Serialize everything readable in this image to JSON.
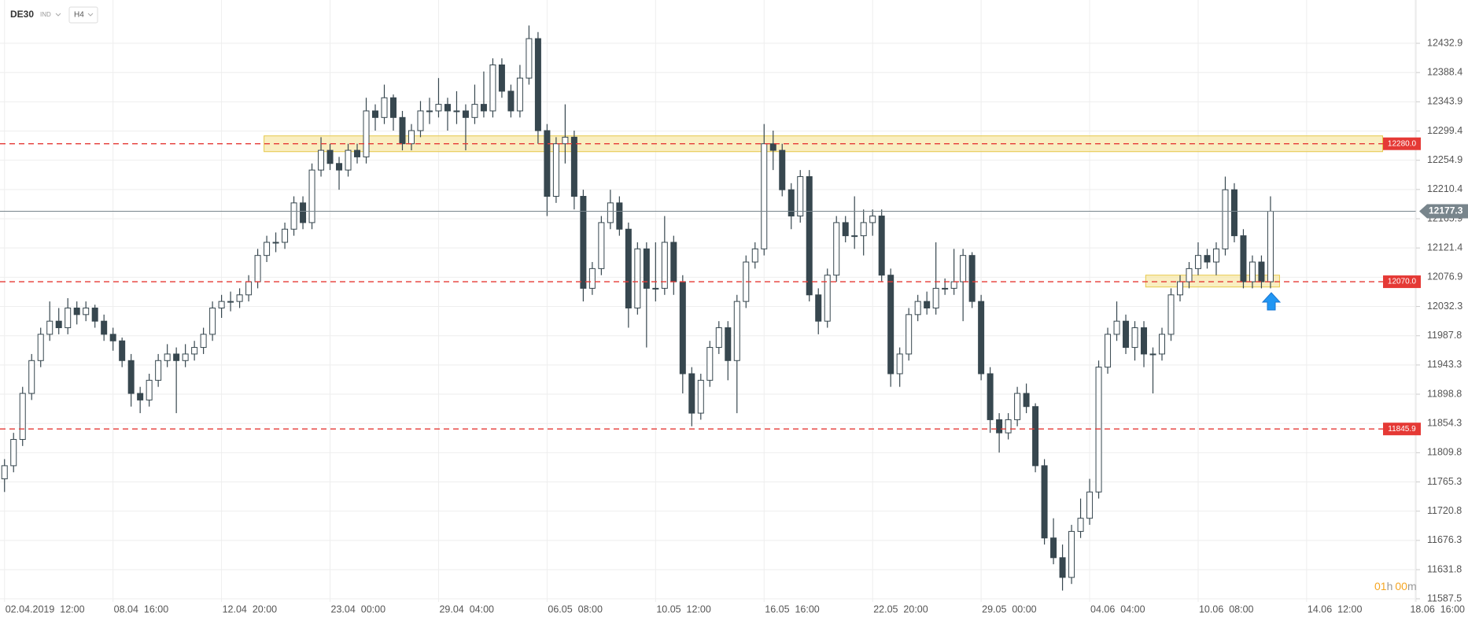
{
  "chart_data": {
    "type": "candlestick",
    "title": "DE30",
    "subtitle": "IND",
    "interval": "H4",
    "colors": {
      "up": "#ffffff",
      "down": "#37474f",
      "outline": "#37474f",
      "level": "#e53935",
      "zone": "#f6e7a6",
      "zone_edge": "#e6c84a",
      "current": "#78858c",
      "grid": "#eeeeee"
    },
    "grid": true,
    "ylim": [
      11582.7,
      12498.8
    ],
    "yticks": [
      11587.5,
      11631.8,
      11676.3,
      11720.8,
      11765.3,
      11809.8,
      11854.3,
      11898.8,
      11943.3,
      11987.8,
      12032.3,
      12076.9,
      12121.4,
      12165.9,
      12210.4,
      12254.9,
      12299.4,
      12343.9,
      12388.4,
      12432.9
    ],
    "xlim": [
      -0.5,
      156.1
    ],
    "xticks": [
      {
        "value": 0,
        "label": "02.04.2019  12:00"
      },
      {
        "value": 12,
        "label": "08.04  16:00"
      },
      {
        "value": 24,
        "label": "12.04  20:00"
      },
      {
        "value": 36,
        "label": "23.04  00:00"
      },
      {
        "value": 48,
        "label": "29.04  04:00"
      },
      {
        "value": 60,
        "label": "06.05  08:00"
      },
      {
        "value": 72,
        "label": "10.05  12:00"
      },
      {
        "value": 84,
        "label": "16.05  16:00"
      },
      {
        "value": 96,
        "label": "22.05  20:00"
      },
      {
        "value": 108,
        "label": "29.05  00:00"
      },
      {
        "value": 120,
        "label": "04.06  04:00"
      },
      {
        "value": 132,
        "label": "10.06  08:00"
      },
      {
        "value": 144,
        "label": "14.06  12:00"
      },
      {
        "value": 156,
        "label": "18.06  16:00"
      }
    ],
    "candles": [
      [
        11770,
        11800,
        11750,
        11790
      ],
      [
        11790,
        11840,
        11780,
        11830
      ],
      [
        11830,
        11910,
        11820,
        11900
      ],
      [
        11900,
        11960,
        11890,
        11950
      ],
      [
        11950,
        12000,
        11940,
        11990
      ],
      [
        11990,
        12040,
        11980,
        12010
      ],
      [
        12010,
        12030,
        11990,
        12000
      ],
      [
        12000,
        12045,
        11990,
        12030
      ],
      [
        12030,
        12040,
        12005,
        12020
      ],
      [
        12020,
        12040,
        12010,
        12030
      ],
      [
        12030,
        12035,
        12000,
        12010
      ],
      [
        12010,
        12020,
        11980,
        11990
      ],
      [
        11990,
        12000,
        11965,
        11980
      ],
      [
        11980,
        11985,
        11940,
        11950
      ],
      [
        11950,
        11960,
        11880,
        11900
      ],
      [
        11900,
        11910,
        11870,
        11890
      ],
      [
        11890,
        11930,
        11880,
        11920
      ],
      [
        11920,
        11960,
        11910,
        11950
      ],
      [
        11950,
        11975,
        11940,
        11960
      ],
      [
        11960,
        11970,
        11870,
        11950
      ],
      [
        11950,
        11975,
        11940,
        11960
      ],
      [
        11960,
        11980,
        11950,
        11970
      ],
      [
        11970,
        12000,
        11960,
        11990
      ],
      [
        11990,
        12040,
        11980,
        12030
      ],
      [
        12030,
        12050,
        12015,
        12040
      ],
      [
        12040,
        12055,
        12025,
        12040
      ],
      [
        12040,
        12060,
        12030,
        12050
      ],
      [
        12050,
        12080,
        12040,
        12070
      ],
      [
        12070,
        12120,
        12060,
        12110
      ],
      [
        12110,
        12140,
        12100,
        12130
      ],
      [
        12130,
        12145,
        12115,
        12130
      ],
      [
        12130,
        12160,
        12120,
        12150
      ],
      [
        12150,
        12200,
        12140,
        12190
      ],
      [
        12190,
        12200,
        12150,
        12160
      ],
      [
        12160,
        12250,
        12150,
        12240
      ],
      [
        12240,
        12290,
        12230,
        12270
      ],
      [
        12270,
        12280,
        12240,
        12250
      ],
      [
        12250,
        12260,
        12210,
        12240
      ],
      [
        12240,
        12280,
        12230,
        12270
      ],
      [
        12270,
        12280,
        12250,
        12260
      ],
      [
        12260,
        12350,
        12250,
        12330
      ],
      [
        12330,
        12340,
        12300,
        12320
      ],
      [
        12320,
        12370,
        12310,
        12350
      ],
      [
        12350,
        12355,
        12300,
        12320
      ],
      [
        12320,
        12330,
        12270,
        12280
      ],
      [
        12280,
        12310,
        12270,
        12300
      ],
      [
        12300,
        12345,
        12290,
        12330
      ],
      [
        12330,
        12350,
        12310,
        12330
      ],
      [
        12330,
        12380,
        12320,
        12340
      ],
      [
        12340,
        12350,
        12300,
        12330
      ],
      [
        12330,
        12360,
        12310,
        12330
      ],
      [
        12330,
        12340,
        12270,
        12320
      ],
      [
        12320,
        12370,
        12310,
        12340
      ],
      [
        12340,
        12390,
        12320,
        12330
      ],
      [
        12330,
        12410,
        12320,
        12400
      ],
      [
        12400,
        12410,
        12350,
        12360
      ],
      [
        12360,
        12370,
        12320,
        12330
      ],
      [
        12330,
        12400,
        12320,
        12380
      ],
      [
        12380,
        12460,
        12370,
        12440
      ],
      [
        12440,
        12450,
        12280,
        12300
      ],
      [
        12300,
        12310,
        12170,
        12200
      ],
      [
        12200,
        12290,
        12190,
        12280
      ],
      [
        12280,
        12340,
        12250,
        12290
      ],
      [
        12290,
        12300,
        12180,
        12200
      ],
      [
        12200,
        12210,
        12040,
        12060
      ],
      [
        12060,
        12100,
        12050,
        12090
      ],
      [
        12090,
        12170,
        12080,
        12160
      ],
      [
        12160,
        12210,
        12150,
        12190
      ],
      [
        12190,
        12200,
        12140,
        12150
      ],
      [
        12150,
        12160,
        12000,
        12030
      ],
      [
        12030,
        12130,
        12020,
        12120
      ],
      [
        12120,
        12130,
        11970,
        12060
      ],
      [
        12060,
        12130,
        12040,
        12060
      ],
      [
        12060,
        12170,
        12050,
        12130
      ],
      [
        12130,
        12140,
        12050,
        12070
      ],
      [
        12070,
        12080,
        11900,
        11930
      ],
      [
        11930,
        11940,
        11850,
        11870
      ],
      [
        11870,
        11930,
        11860,
        11920
      ],
      [
        11920,
        11980,
        11910,
        11970
      ],
      [
        11970,
        12010,
        11960,
        12000
      ],
      [
        12000,
        12010,
        11920,
        11950
      ],
      [
        11950,
        12050,
        11870,
        12040
      ],
      [
        12040,
        12110,
        12030,
        12100
      ],
      [
        12100,
        12130,
        12090,
        12120
      ],
      [
        12120,
        12310,
        12110,
        12280
      ],
      [
        12280,
        12300,
        12240,
        12270
      ],
      [
        12270,
        12280,
        12200,
        12210
      ],
      [
        12210,
        12220,
        12150,
        12170
      ],
      [
        12170,
        12240,
        12160,
        12230
      ],
      [
        12230,
        12240,
        12040,
        12050
      ],
      [
        12050,
        12060,
        11990,
        12010
      ],
      [
        12010,
        12090,
        12000,
        12080
      ],
      [
        12080,
        12170,
        12070,
        12160
      ],
      [
        12160,
        12170,
        12130,
        12140
      ],
      [
        12140,
        12200,
        12120,
        12140
      ],
      [
        12140,
        12180,
        12110,
        12160
      ],
      [
        12160,
        12180,
        12140,
        12170
      ],
      [
        12170,
        12180,
        12070,
        12080
      ],
      [
        12080,
        12090,
        11910,
        11930
      ],
      [
        11930,
        11970,
        11910,
        11960
      ],
      [
        11960,
        12030,
        11950,
        12020
      ],
      [
        12020,
        12050,
        12010,
        12040
      ],
      [
        12040,
        12055,
        12020,
        12030
      ],
      [
        12030,
        12130,
        12020,
        12060
      ],
      [
        12060,
        12075,
        12050,
        12060
      ],
      [
        12060,
        12120,
        12050,
        12070
      ],
      [
        12070,
        12120,
        12010,
        12110
      ],
      [
        12110,
        12115,
        12030,
        12040
      ],
      [
        12040,
        12050,
        11920,
        11930
      ],
      [
        11930,
        11940,
        11840,
        11860
      ],
      [
        11860,
        11870,
        11810,
        11840
      ],
      [
        11840,
        11870,
        11830,
        11860
      ],
      [
        11860,
        11910,
        11850,
        11900
      ],
      [
        11900,
        11915,
        11870,
        11880
      ],
      [
        11880,
        11885,
        11780,
        11790
      ],
      [
        11790,
        11800,
        11670,
        11680
      ],
      [
        11680,
        11710,
        11640,
        11650
      ],
      [
        11650,
        11670,
        11600,
        11620
      ],
      [
        11620,
        11700,
        11610,
        11690
      ],
      [
        11690,
        11740,
        11680,
        11710
      ],
      [
        11710,
        11770,
        11700,
        11750
      ],
      [
        11750,
        11950,
        11740,
        11940
      ],
      [
        11940,
        12000,
        11930,
        11990
      ],
      [
        11990,
        12040,
        11980,
        12010
      ],
      [
        12010,
        12020,
        11960,
        11970
      ],
      [
        11970,
        12010,
        11950,
        12000
      ],
      [
        12000,
        12010,
        11940,
        11960
      ],
      [
        11960,
        11970,
        11900,
        11960
      ],
      [
        11960,
        12000,
        11950,
        11990
      ],
      [
        11990,
        12060,
        11980,
        12050
      ],
      [
        12050,
        12080,
        12040,
        12070
      ],
      [
        12070,
        12100,
        12060,
        12090
      ],
      [
        12090,
        12130,
        12080,
        12110
      ],
      [
        12110,
        12120,
        12090,
        12100
      ],
      [
        12100,
        12130,
        12080,
        12120
      ],
      [
        12120,
        12230,
        12110,
        12210
      ],
      [
        12210,
        12220,
        12130,
        12140
      ],
      [
        12140,
        12150,
        12060,
        12070
      ],
      [
        12070,
        12110,
        12060,
        12100
      ],
      [
        12100,
        12110,
        12060,
        12070
      ],
      [
        12070,
        12200,
        12060,
        12177.3
      ]
    ],
    "levels": [
      {
        "value": 12280,
        "label": "12280.0"
      },
      {
        "value": 12070,
        "label": "12070.0"
      },
      {
        "value": 11845.9,
        "label": "11845.9"
      }
    ],
    "current": 12177.3,
    "zones": [
      {
        "from": 28.7,
        "to": 152.4,
        "low": 12268,
        "high": 12292
      },
      {
        "from": 126.2,
        "to": 141,
        "low": 12062,
        "high": 12080
      }
    ],
    "countdown": {
      "hours": "01",
      "hours_unit": "h",
      "minutes": "00",
      "minutes_unit": "m"
    }
  }
}
